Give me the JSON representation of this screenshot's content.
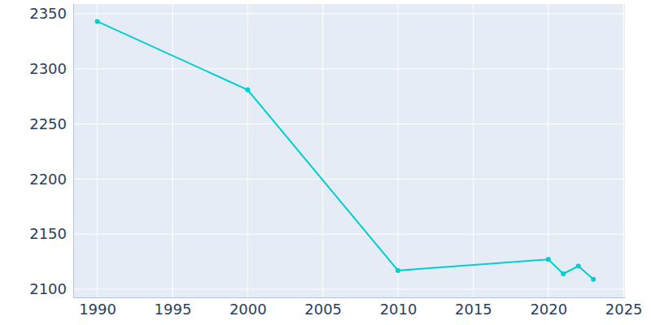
{
  "chart_data": {
    "type": "line",
    "x": [
      1990,
      2000,
      2010,
      2020,
      2021,
      2022,
      2023
    ],
    "values": [
      2343,
      2281,
      2117,
      2127,
      2114,
      2121,
      2109
    ],
    "color": "#00ced1",
    "marker": "circle",
    "xlim": [
      1988.4,
      2025.1
    ],
    "xticks": [
      1990,
      1995,
      2000,
      2005,
      2010,
      2015,
      2020,
      2025
    ],
    "ylim": [
      2092.6,
      2358.8
    ],
    "yticks": [
      2100,
      2150,
      2200,
      2250,
      2300,
      2350
    ],
    "grid": true
  }
}
